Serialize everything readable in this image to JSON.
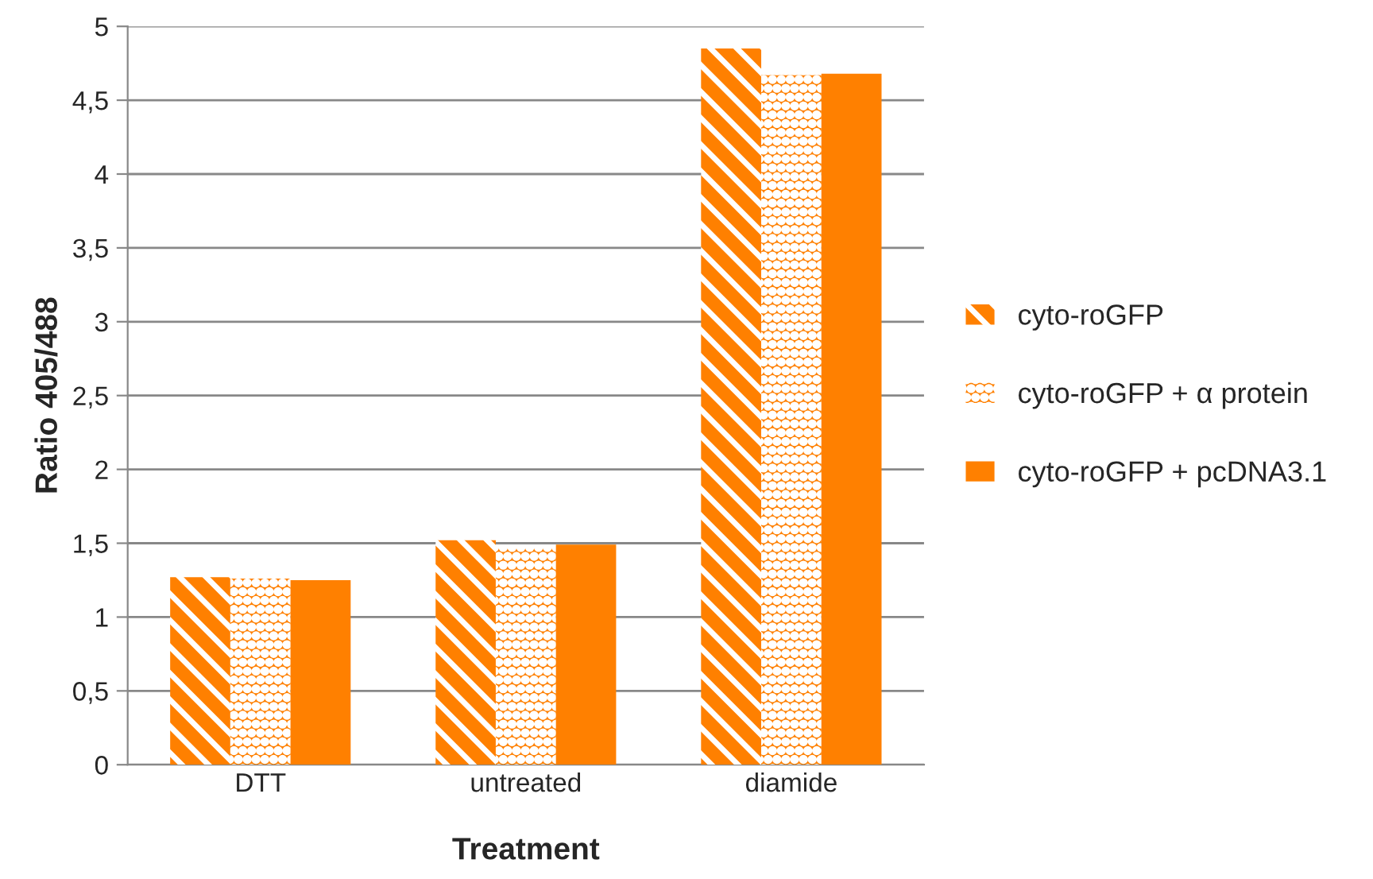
{
  "chart_data": {
    "type": "bar",
    "xlabel": "Treatment",
    "ylabel": "Ratio 405/488",
    "categories": [
      "DTT",
      "untreated",
      "diamide"
    ],
    "series": [
      {
        "name": "cyto-roGFP",
        "color": "#ff8000",
        "values": [
          1.27,
          1.52,
          4.85
        ]
      },
      {
        "name": "cyto-roGFP + α protein",
        "color": "#ff8000",
        "values": [
          1.26,
          1.47,
          4.67
        ]
      },
      {
        "name": "cyto-roGFP + pcDNA3.1",
        "color": "#ff8000",
        "values": [
          1.25,
          1.49,
          4.68
        ]
      }
    ],
    "ylim": [
      0,
      5
    ],
    "yticks": [
      0,
      {
        "value": 0.5,
        "label": "0,5"
      },
      1,
      {
        "value": 1.5,
        "label": "1,5"
      },
      2,
      {
        "value": 2.5,
        "label": "2,5"
      },
      3,
      {
        "value": 3.5,
        "label": "3,5"
      },
      4,
      {
        "value": 4.5,
        "label": "4,5"
      },
      5
    ],
    "grid": "y",
    "legend": "right"
  }
}
